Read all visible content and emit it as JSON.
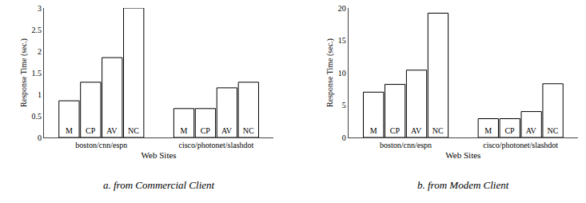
{
  "chart_data": [
    {
      "type": "bar",
      "title": "a. from Commercial Client",
      "xlabel": "Web Sites",
      "ylabel": "Response Time (sec.)",
      "categories": [
        "boston/cnn/espn",
        "cisco/photonet/slashdot"
      ],
      "series": [
        {
          "name": "M",
          "color": "#ffffff",
          "values": [
            0.85,
            0.67
          ]
        },
        {
          "name": "CP",
          "color": "#ffffff",
          "values": [
            1.28,
            0.67
          ]
        },
        {
          "name": "AV",
          "color": "#ffffff",
          "values": [
            1.85,
            1.15
          ]
        },
        {
          "name": "NC",
          "color": "#ffffff",
          "values": [
            3.0,
            1.28
          ]
        }
      ],
      "ylim": [
        0,
        3
      ],
      "yticks": [
        0,
        0.5,
        1,
        1.5,
        2,
        2.5,
        3
      ],
      "grid": false
    },
    {
      "type": "bar",
      "title": "b. from Modem Client",
      "xlabel": "Web Sites",
      "ylabel": "Response Time (sec.)",
      "categories": [
        "boston/cnn/espn",
        "cisco/photonet/slashdot"
      ],
      "series": [
        {
          "name": "M",
          "color": "#ffffff",
          "values": [
            7.0,
            2.9
          ]
        },
        {
          "name": "CP",
          "color": "#ffffff",
          "values": [
            8.2,
            2.9
          ]
        },
        {
          "name": "AV",
          "color": "#ffffff",
          "values": [
            10.4,
            4.0
          ]
        },
        {
          "name": "NC",
          "color": "#ffffff",
          "values": [
            19.2,
            8.3
          ]
        }
      ],
      "ylim": [
        0,
        20
      ],
      "yticks": [
        0,
        5,
        10,
        15,
        20
      ],
      "grid": false
    }
  ]
}
